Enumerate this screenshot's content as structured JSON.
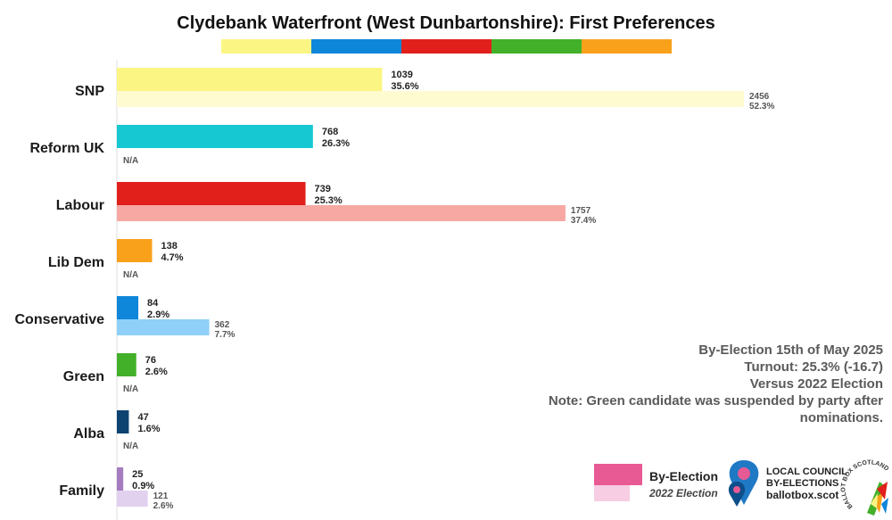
{
  "chart_data": {
    "type": "bar",
    "orientation": "horizontal",
    "title": "Clydebank Waterfront (West Dunbartonshire): First Preferences",
    "categories": [
      "SNP",
      "Reform UK",
      "Labour",
      "Lib Dem",
      "Conservative",
      "Green",
      "Alba",
      "Family"
    ],
    "series": [
      {
        "name": "By-Election",
        "values": [
          1039,
          768,
          739,
          138,
          84,
          76,
          47,
          25
        ],
        "percent_labels": [
          "35.6%",
          "26.3%",
          "25.3%",
          "4.7%",
          "2.9%",
          "2.6%",
          "1.6%",
          "0.9%"
        ]
      },
      {
        "name": "2022 Election",
        "values": [
          2456,
          null,
          1757,
          null,
          362,
          null,
          null,
          121
        ],
        "percent_labels": [
          "52.3%",
          null,
          "37.4%",
          null,
          "7.7%",
          null,
          null,
          "2.6%"
        ]
      }
    ],
    "na_label": "N/A",
    "xlim": [
      0,
      2456
    ],
    "grid": false,
    "legend_position": "bottom-right",
    "colors": {
      "by_election": [
        "#fbf584",
        "#15c8d2",
        "#e1201c",
        "#f9a11b",
        "#0e86d9",
        "#43b02a",
        "#0d4370",
        "#a67cc0"
      ],
      "previous": [
        "#fefbd0",
        null,
        "#f7a8a3",
        null,
        "#8ed0f8",
        null,
        null,
        "#e2d1ee"
      ]
    }
  },
  "color_strip": [
    "#fbf584",
    "#0e86d9",
    "#e1201c",
    "#43b02a",
    "#f9a11b"
  ],
  "notes": [
    "By-Election 15th of May 2025",
    "Turnout: 25.3% (-16.7)",
    "Versus 2022 Election",
    "Note: Green candidate was suspended by party after",
    "nominations."
  ],
  "legend": {
    "main": "By-Election",
    "sub": "2022 Election",
    "main_color": "#e85a94",
    "sub_color": "#f6cde2"
  },
  "branding": {
    "line1": "LOCAL COUNCIL",
    "line2": "BY-ELECTIONS",
    "line3": "ballotbox.scot",
    "stamp": "BALLOT BOX SCOTLAND",
    "pin_icon": "map-pin-icon",
    "stamp_icon": "ballot-box-scotland-logo"
  }
}
